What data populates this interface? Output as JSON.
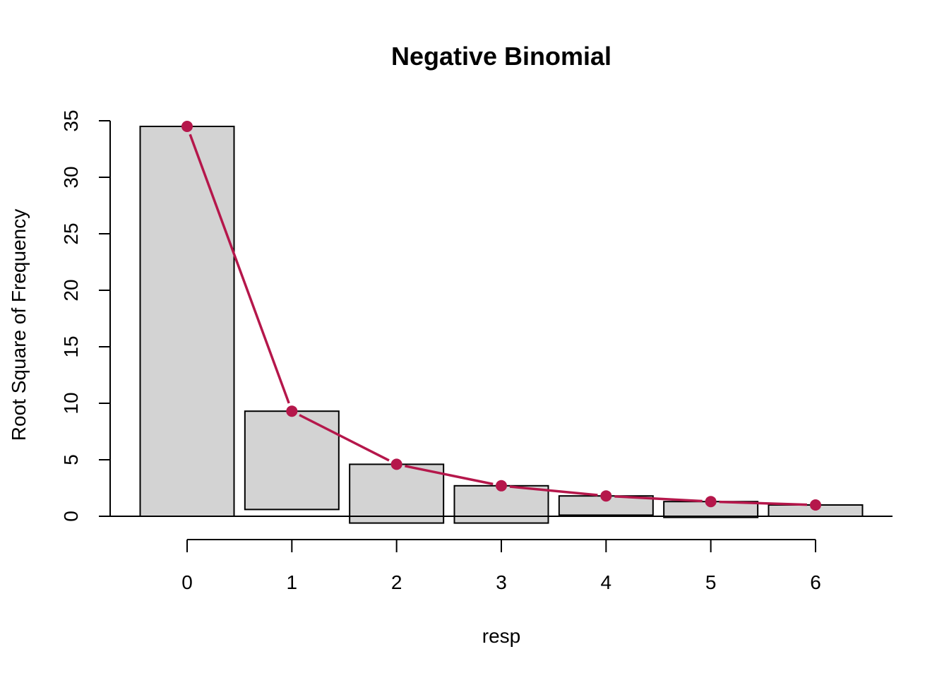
{
  "chart_data": {
    "type": "bar",
    "subtype": "hanging rootogram",
    "title": "Negative Binomial",
    "xlabel": "resp",
    "ylabel": "Root Square of Frequency",
    "x": [
      0,
      1,
      2,
      3,
      4,
      5,
      6
    ],
    "x_ticks": [
      "0",
      "1",
      "2",
      "3",
      "4",
      "5",
      "6"
    ],
    "y_ticks": [
      "0",
      "5",
      "10",
      "15",
      "20",
      "25",
      "30",
      "35"
    ],
    "ylim": [
      -2,
      36
    ],
    "series": [
      {
        "type": "bar",
        "bar_top": [
          34.5,
          9.3,
          4.6,
          2.7,
          1.8,
          1.3,
          1.0
        ],
        "bar_bottom": [
          0.0,
          0.6,
          -0.6,
          -0.6,
          0.1,
          -0.1,
          0.0
        ]
      },
      {
        "type": "line",
        "values": [
          34.5,
          9.3,
          4.6,
          2.7,
          1.8,
          1.3,
          1.0
        ]
      }
    ],
    "colors": {
      "bar_fill": "#d3d3d3",
      "bar_stroke": "#000000",
      "line": "#b5174b"
    },
    "grid": false,
    "legend": "none"
  }
}
